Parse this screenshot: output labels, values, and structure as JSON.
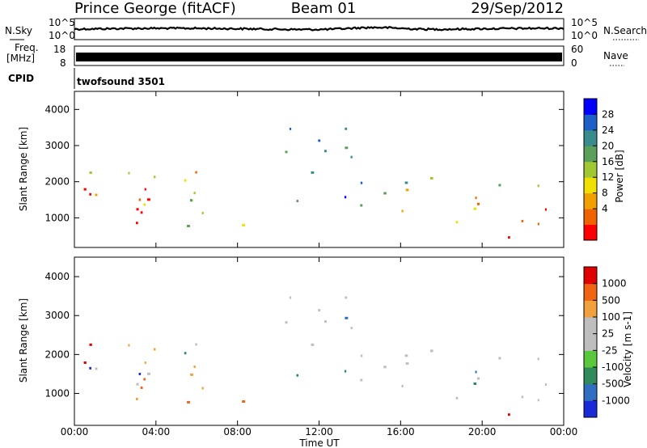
{
  "header": {
    "station": "Prince George (fitACF)",
    "beam": "Beam 01",
    "date": "29/Sep/2012"
  },
  "noise_panel": {
    "left_label": "N.Sky",
    "right_label": "N.Search",
    "left_ticks": [
      "10^5",
      "10^0"
    ],
    "right_ticks": [
      "10^5",
      "10^0"
    ]
  },
  "freq_panel": {
    "left_label_1": "Freq.",
    "left_label_2": "[MHz]",
    "right_label": "Nave",
    "left_ticks": [
      "18",
      "8"
    ],
    "right_ticks": [
      "60",
      "0"
    ]
  },
  "cpid": {
    "label": "CPID",
    "value": "twofsound 3501"
  },
  "colors": {
    "power_scale": [
      "#0000ff",
      "#1f5fc8",
      "#3a8c8c",
      "#5aa05a",
      "#a0c832",
      "#f0e000",
      "#f0a000",
      "#f06400",
      "#ff0000"
    ],
    "velocity_scale": [
      "#1a2ad8",
      "#2f6ec0",
      "#2f8c5a",
      "#5ac83c",
      "#bebebe",
      "#bebebe",
      "#f0a03c",
      "#f06414",
      "#e00000"
    ],
    "ground_scatter": "#bebebe"
  },
  "chart_data": [
    {
      "type": "heatmap",
      "name": "power",
      "xlabel": "",
      "ylabel": "Slant Range [km]",
      "x_ticks": [
        "00:00",
        "04:00",
        "08:00",
        "12:00",
        "16:00",
        "20:00",
        "00:00"
      ],
      "y_ticks": [
        "1000",
        "2000",
        "3000",
        "4000"
      ],
      "xlim": [
        0,
        24
      ],
      "ylim": [
        180,
        4500
      ],
      "colorbar_label": "Power [dB]",
      "colorbar_ticks": [
        "28",
        "24",
        "20",
        "16",
        "12",
        "8",
        "4"
      ],
      "colorbar_range": [
        0,
        30
      ],
      "regions": [
        {
          "t0": 0.0,
          "t1": 4.5,
          "r0": 700,
          "r1": 1800,
          "level": 0.9,
          "ground": 0
        },
        {
          "t0": 0.5,
          "t1": 4.8,
          "r0": 1500,
          "r1": 2300,
          "level": 0.55,
          "ground": 0
        },
        {
          "t0": 3.0,
          "t1": 7.2,
          "r0": 1100,
          "r1": 2500,
          "level": 0.75,
          "ground": 0
        },
        {
          "t0": 4.8,
          "t1": 8.6,
          "r0": 700,
          "r1": 1700,
          "level": 0.55,
          "ground": 0
        },
        {
          "t0": 8.5,
          "t1": 14.3,
          "r0": 2200,
          "r1": 3500,
          "level": 0.25,
          "ground": 1
        },
        {
          "t0": 10.3,
          "t1": 13.8,
          "r0": 1450,
          "r1": 1850,
          "level": 0.3,
          "ground": 0
        },
        {
          "t0": 13.5,
          "t1": 16.0,
          "r0": 900,
          "r1": 2000,
          "level": 0.25,
          "ground": 1
        },
        {
          "t0": 16.0,
          "t1": 24.0,
          "r0": 800,
          "r1": 1800,
          "level": 0.75,
          "ground": 1
        },
        {
          "t0": 16.0,
          "t1": 24.0,
          "r0": 1800,
          "r1": 2300,
          "level": 0.35,
          "ground": 1
        },
        {
          "t0": 18.5,
          "t1": 22.0,
          "r0": 400,
          "r1": 750,
          "level": 1.0,
          "ground": 0
        }
      ]
    },
    {
      "type": "heatmap",
      "name": "velocity",
      "xlabel": "Time UT",
      "ylabel": "Slant Range [km]",
      "x_ticks": [
        "00:00",
        "04:00",
        "08:00",
        "12:00",
        "16:00",
        "20:00",
        "00:00"
      ],
      "y_ticks": [
        "1000",
        "2000",
        "3000",
        "4000"
      ],
      "xlim": [
        0,
        24
      ],
      "ylim": [
        180,
        4500
      ],
      "colorbar_label": "Velocity [m s-1]",
      "colorbar_ticks": [
        "1000",
        "500",
        "100",
        "25",
        "-25",
        "-100",
        "-500",
        "-1000"
      ],
      "colorbar_range": [
        -1000,
        1000
      ]
    }
  ]
}
